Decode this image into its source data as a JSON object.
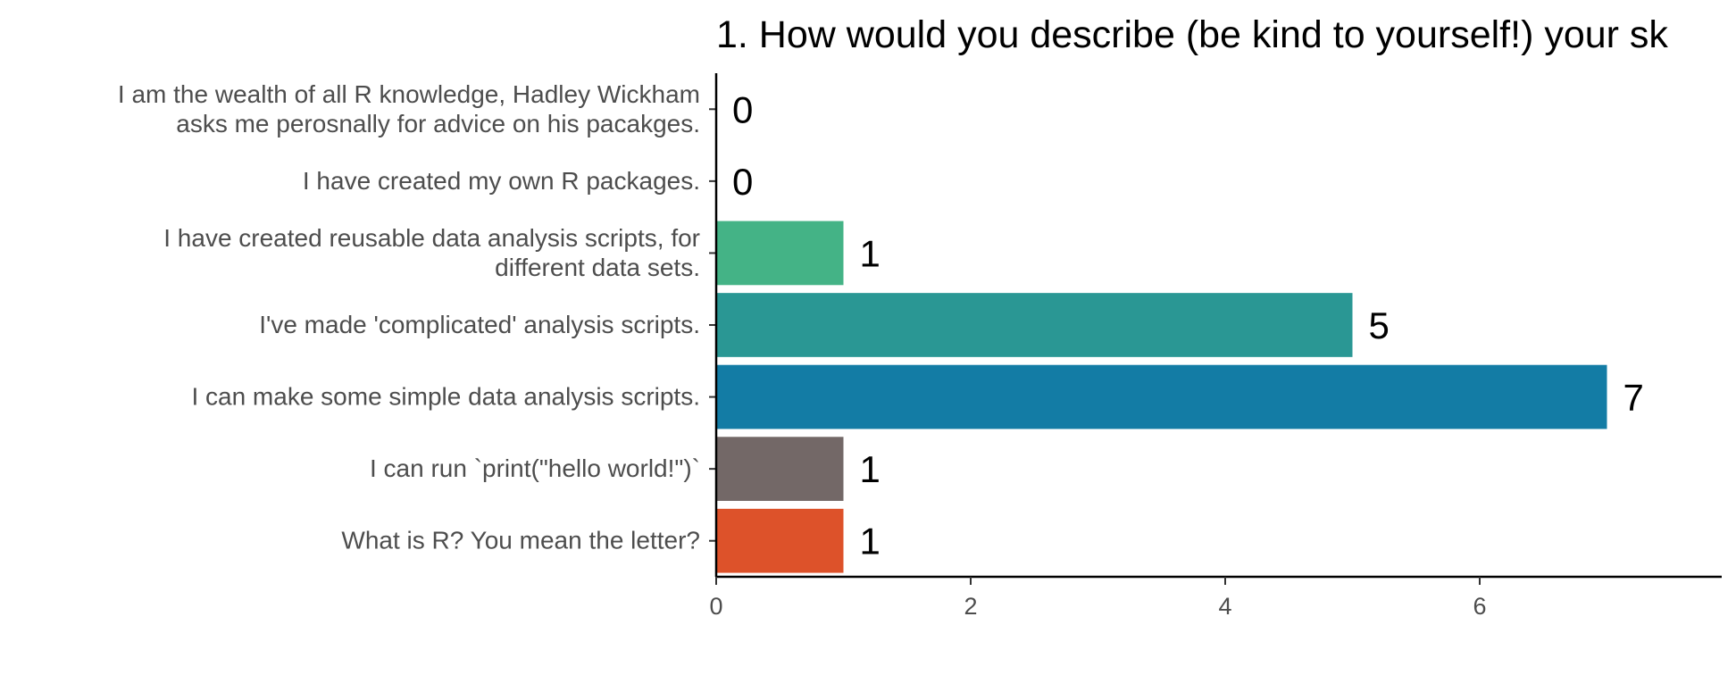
{
  "chart_data": {
    "type": "bar",
    "orientation": "horizontal",
    "title": "1. How would you describe (be kind to yourself!) your sk",
    "xlabel": "",
    "ylabel": "",
    "xlim": [
      0,
      7.9
    ],
    "x_ticks": [
      0,
      2,
      4,
      6
    ],
    "grid": false,
    "legend": "none",
    "categories": [
      {
        "lines": [
          "I am the wealth of all R knowledge, Hadley Wickham",
          "asks me perosnally for advice on his pacakges."
        ],
        "value": 0,
        "value_label": "0",
        "color": "#ffffff"
      },
      {
        "lines": [
          "I have created my own R packages."
        ],
        "value": 0,
        "value_label": "0",
        "color": "#ffffff"
      },
      {
        "lines": [
          "I have created reusable data analysis scripts, for",
          "different data sets."
        ],
        "value": 1,
        "value_label": "1",
        "color": "#44b386"
      },
      {
        "lines": [
          "I've made 'complicated' analysis scripts."
        ],
        "value": 5,
        "value_label": "5",
        "color": "#2a9794"
      },
      {
        "lines": [
          "I can make some simple data analysis scripts."
        ],
        "value": 7,
        "value_label": "7",
        "color": "#137ca5"
      },
      {
        "lines": [
          "I can run `print(\"hello world!\")`"
        ],
        "value": 1,
        "value_label": "1",
        "color": "#736867"
      },
      {
        "lines": [
          "What is R? You mean the letter?"
        ],
        "value": 1,
        "value_label": "1",
        "color": "#dd522a"
      }
    ]
  }
}
